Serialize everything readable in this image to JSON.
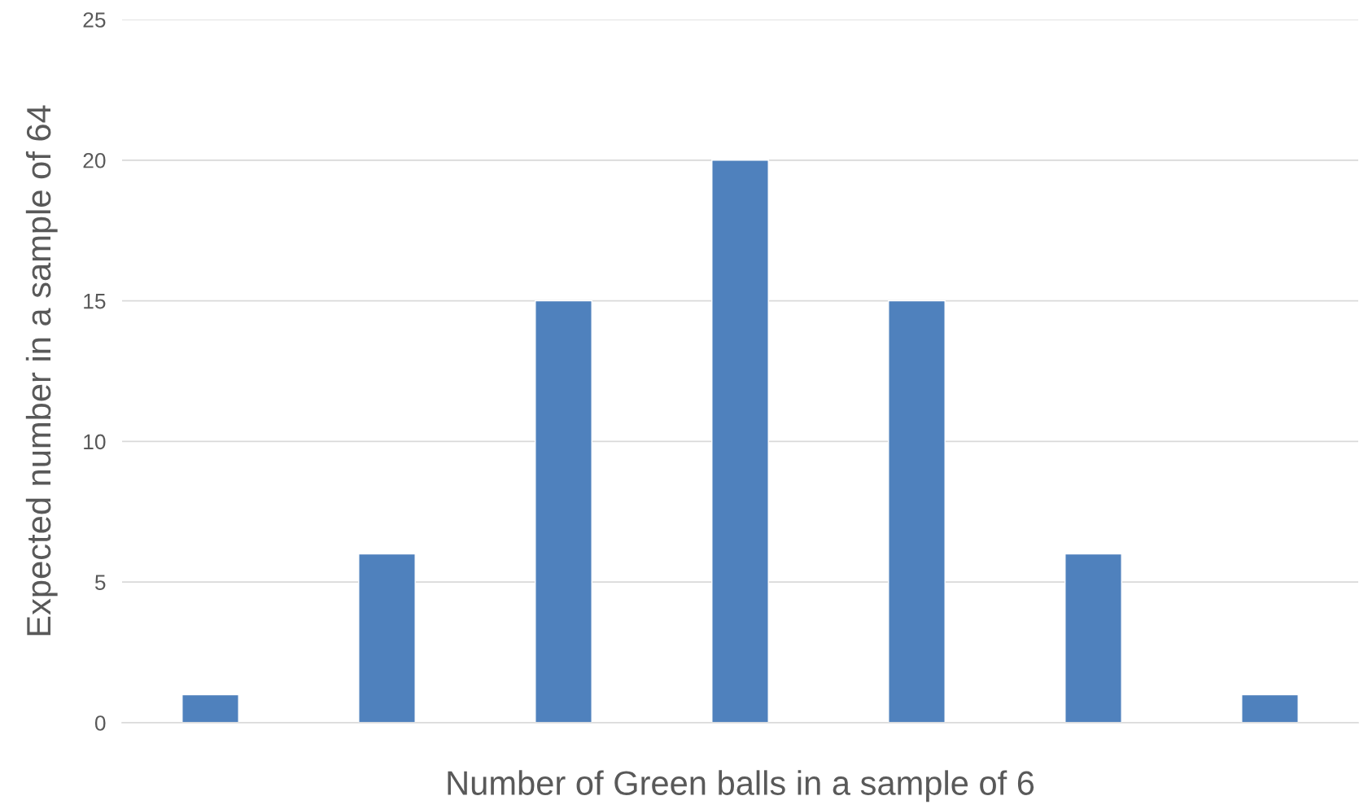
{
  "chart_data": {
    "type": "bar",
    "xlabel": "Number of Green balls in a sample of 6",
    "ylabel": "Expected number in a sample of 64",
    "categories": [
      null,
      null,
      null,
      null,
      null,
      null,
      null
    ],
    "values": [
      1,
      6,
      15,
      20,
      15,
      6,
      1
    ],
    "color": "#4f81bd",
    "ylim": [
      0,
      25
    ],
    "yticks": [
      0,
      5,
      10,
      15,
      20,
      25
    ],
    "grid": "y",
    "tick_labels": "y"
  }
}
